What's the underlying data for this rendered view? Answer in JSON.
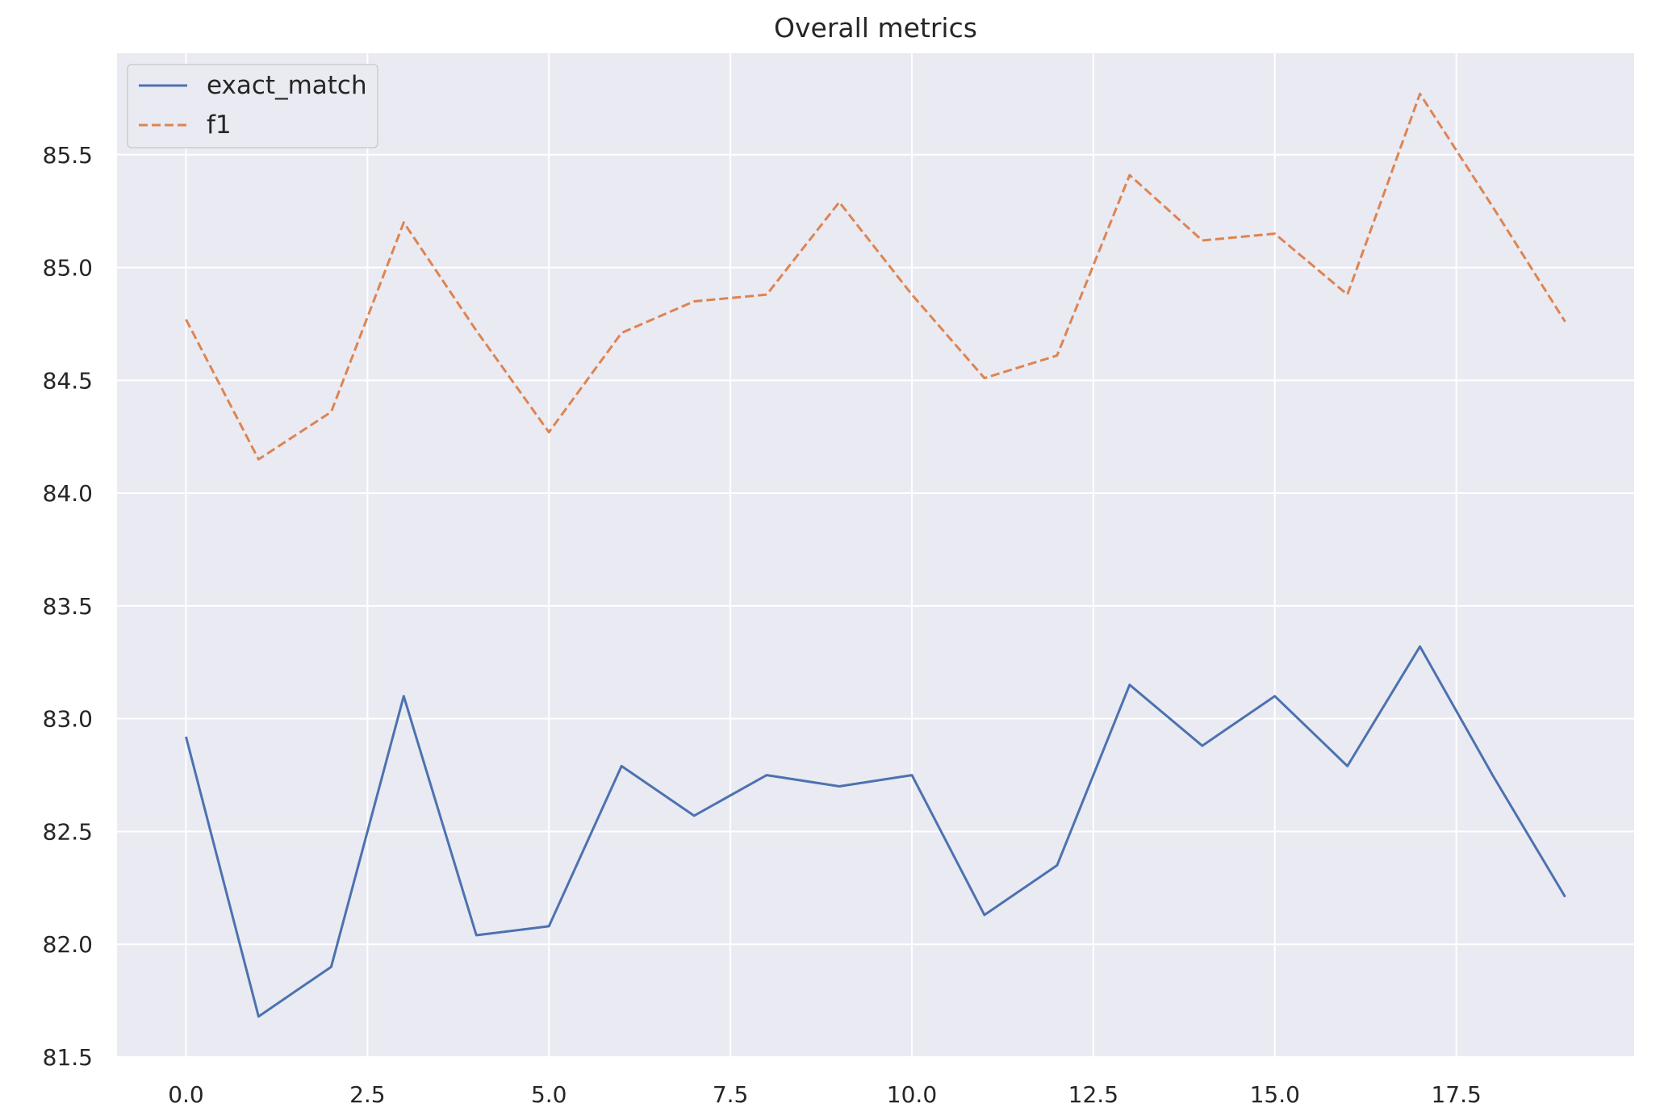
{
  "chart_data": {
    "type": "line",
    "title": "Overall metrics",
    "xlabel": "",
    "ylabel": "",
    "x": [
      0,
      1,
      2,
      3,
      4,
      5,
      6,
      7,
      8,
      9,
      10,
      11,
      12,
      13,
      14,
      15,
      16,
      17,
      18,
      19
    ],
    "xlim": [
      -0.95,
      19.95
    ],
    "ylim": [
      81.5,
      85.95
    ],
    "xticks": [
      0.0,
      2.5,
      5.0,
      7.5,
      10.0,
      12.5,
      15.0,
      17.5
    ],
    "xtick_labels": [
      "0.0",
      "2.5",
      "5.0",
      "7.5",
      "10.0",
      "12.5",
      "15.0",
      "17.5"
    ],
    "yticks": [
      81.5,
      82.0,
      82.5,
      83.0,
      83.5,
      84.0,
      84.5,
      85.0,
      85.5
    ],
    "ytick_labels": [
      "81.5",
      "82.0",
      "82.5",
      "83.0",
      "83.5",
      "84.0",
      "84.5",
      "85.0",
      "85.5"
    ],
    "grid": true,
    "legend_position": "top-left",
    "series": [
      {
        "name": "exact_match",
        "style": "solid",
        "color": "#4c72b0",
        "values": [
          82.92,
          81.68,
          81.9,
          83.1,
          82.04,
          82.08,
          82.79,
          82.57,
          82.75,
          82.7,
          82.75,
          82.13,
          82.35,
          83.15,
          82.88,
          83.1,
          82.79,
          83.32,
          82.75,
          82.21
        ]
      },
      {
        "name": "f1",
        "style": "dashed",
        "color": "#dd8452",
        "values": [
          84.77,
          84.15,
          84.36,
          85.2,
          84.72,
          84.27,
          84.71,
          84.85,
          84.88,
          85.29,
          84.88,
          84.51,
          84.61,
          85.41,
          85.12,
          85.15,
          84.88,
          85.77,
          85.27,
          84.76
        ]
      }
    ]
  }
}
